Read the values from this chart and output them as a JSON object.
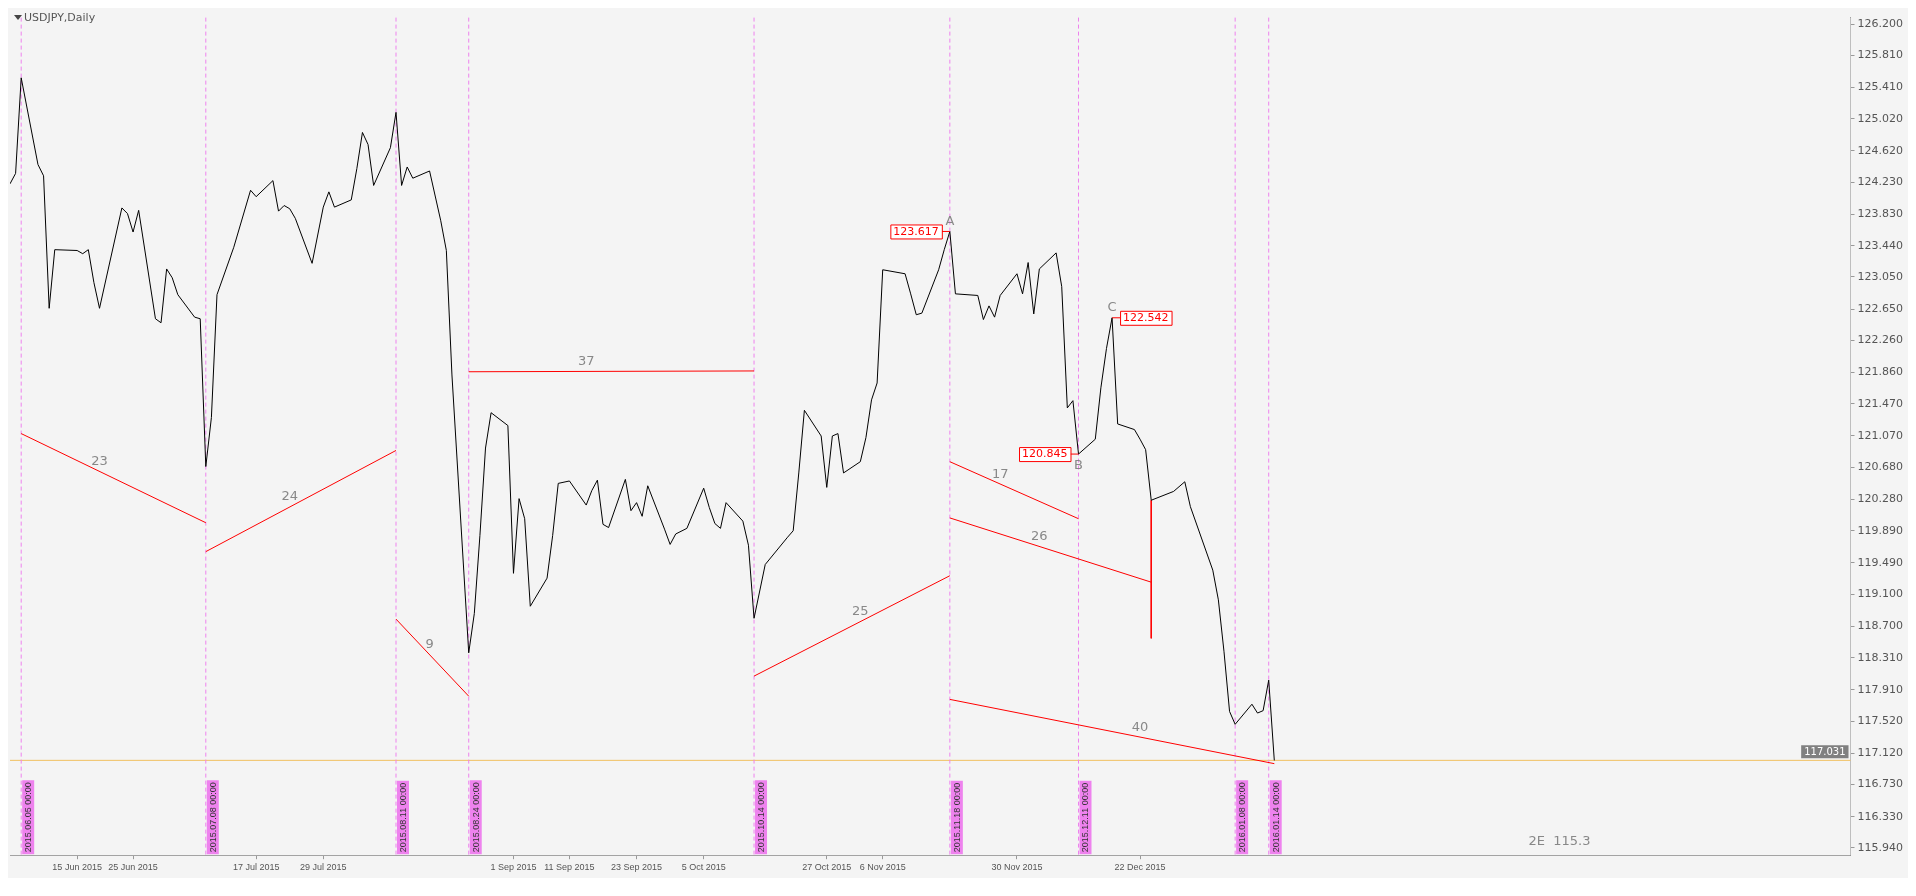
{
  "chart_data": {
    "type": "line",
    "title": "USDJPY,Daily",
    "marker": "none",
    "line_style": "solid",
    "x": [
      "2015-06-03",
      "2015-06-04",
      "2015-06-05",
      "2015-06-08",
      "2015-06-09",
      "2015-06-10",
      "2015-06-11",
      "2015-06-15",
      "2015-06-16",
      "2015-06-17",
      "2015-06-18",
      "2015-06-19",
      "2015-06-23",
      "2015-06-24",
      "2015-06-25",
      "2015-06-26",
      "2015-06-29",
      "2015-06-30",
      "2015-07-01",
      "2015-07-02",
      "2015-07-03",
      "2015-07-06",
      "2015-07-07",
      "2015-07-08",
      "2015-07-09",
      "2015-07-10",
      "2015-07-13",
      "2015-07-16",
      "2015-07-17",
      "2015-07-20",
      "2015-07-21",
      "2015-07-22",
      "2015-07-23",
      "2015-07-24",
      "2015-07-27",
      "2015-07-29",
      "2015-07-30",
      "2015-07-31",
      "2015-08-03",
      "2015-08-04",
      "2015-08-05",
      "2015-08-06",
      "2015-08-07",
      "2015-08-10",
      "2015-08-11",
      "2015-08-12",
      "2015-08-13",
      "2015-08-14",
      "2015-08-17",
      "2015-08-19",
      "2015-08-20",
      "2015-08-21",
      "2015-08-24",
      "2015-08-25",
      "2015-08-26",
      "2015-08-27",
      "2015-08-28",
      "2015-08-31",
      "2015-09-01",
      "2015-09-02",
      "2015-09-03",
      "2015-09-04",
      "2015-09-07",
      "2015-09-08",
      "2015-09-09",
      "2015-09-11",
      "2015-09-14",
      "2015-09-15",
      "2015-09-16",
      "2015-09-17",
      "2015-09-18",
      "2015-09-21",
      "2015-09-22",
      "2015-09-23",
      "2015-09-24",
      "2015-09-25",
      "2015-09-28",
      "2015-09-29",
      "2015-09-30",
      "2015-10-02",
      "2015-10-05",
      "2015-10-06",
      "2015-10-07",
      "2015-10-08",
      "2015-10-09",
      "2015-10-12",
      "2015-10-13",
      "2015-10-14",
      "2015-10-16",
      "2015-10-20",
      "2015-10-21",
      "2015-10-22",
      "2015-10-23",
      "2015-10-26",
      "2015-10-27",
      "2015-10-28",
      "2015-10-29",
      "2015-10-30",
      "2015-11-02",
      "2015-11-03",
      "2015-11-04",
      "2015-11-05",
      "2015-11-06",
      "2015-11-10",
      "2015-11-11",
      "2015-11-12",
      "2015-11-13",
      "2015-11-16",
      "2015-11-17",
      "2015-11-18",
      "2015-11-19",
      "2015-11-23",
      "2015-11-24",
      "2015-11-25",
      "2015-11-26",
      "2015-11-27",
      "2015-11-30",
      "2015-12-01",
      "2015-12-02",
      "2015-12-03",
      "2015-12-04",
      "2015-12-07",
      "2015-12-08",
      "2015-12-09",
      "2015-12-10",
      "2015-12-11",
      "2015-12-14",
      "2015-12-15",
      "2015-12-16",
      "2015-12-17",
      "2015-12-18",
      "2015-12-21",
      "2015-12-22",
      "2015-12-23",
      "2015-12-24",
      "2015-12-28",
      "2015-12-30",
      "2015-12-31",
      "2016-01-04",
      "2016-01-05",
      "2016-01-06",
      "2016-01-07",
      "2016-01-08",
      "2016-01-11",
      "2016-01-12",
      "2016-01-13",
      "2016-01-14",
      "2016-01-15"
    ],
    "series": [
      {
        "color": "#000000",
        "values": [
          124.21,
          124.34,
          125.53,
          124.45,
          124.31,
          122.66,
          123.39,
          123.38,
          123.34,
          123.39,
          122.98,
          122.66,
          123.91,
          123.84,
          123.61,
          123.88,
          122.53,
          122.48,
          123.15,
          123.04,
          122.83,
          122.55,
          122.53,
          120.69,
          121.3,
          122.83,
          123.42,
          124.13,
          124.05,
          124.25,
          123.87,
          123.94,
          123.9,
          123.78,
          123.22,
          123.92,
          124.11,
          123.92,
          124.01,
          124.4,
          124.85,
          124.7,
          124.19,
          124.66,
          125.1,
          124.19,
          124.42,
          124.28,
          124.37,
          123.75,
          123.38,
          121.83,
          118.37,
          118.86,
          119.83,
          120.92,
          121.36,
          121.2,
          119.36,
          120.29,
          120.04,
          118.95,
          119.3,
          119.83,
          120.48,
          120.51,
          120.21,
          120.39,
          120.52,
          119.97,
          119.93,
          120.53,
          120.14,
          120.24,
          120.07,
          120.45,
          119.91,
          119.72,
          119.85,
          119.92,
          120.42,
          120.18,
          119.98,
          119.92,
          120.24,
          120.01,
          119.71,
          118.8,
          119.47,
          119.81,
          119.89,
          120.61,
          121.39,
          121.07,
          120.43,
          121.07,
          121.1,
          120.61,
          120.75,
          121.05,
          121.52,
          121.73,
          123.14,
          123.09,
          122.84,
          122.58,
          122.6,
          123.14,
          123.39,
          123.617,
          122.84,
          122.82,
          122.52,
          122.69,
          122.55,
          122.82,
          123.09,
          122.84,
          123.23,
          122.59,
          123.15,
          123.35,
          122.93,
          121.42,
          121.51,
          120.845,
          121.03,
          121.67,
          122.16,
          122.542,
          121.22,
          121.15,
          121.03,
          120.9,
          120.27,
          120.38,
          120.5,
          120.19,
          119.4,
          119.03,
          118.39,
          117.64,
          117.48,
          117.73,
          117.62,
          117.65,
          118.03,
          117.03
        ],
        "value_labels": [
          null,
          null,
          null,
          null,
          null,
          null,
          null,
          null,
          null,
          null,
          null,
          null,
          null,
          null,
          null,
          null,
          null,
          null,
          null,
          null,
          null,
          null,
          null,
          null,
          null,
          null,
          null,
          null,
          null,
          null,
          null,
          null,
          null,
          null,
          null,
          null,
          null,
          null,
          null,
          null,
          null,
          null,
          null,
          null,
          null,
          null,
          null,
          null,
          null,
          null,
          null,
          null,
          null,
          null,
          null,
          null,
          null,
          null,
          null,
          null,
          null,
          null,
          null,
          null,
          null,
          null,
          null,
          null,
          null,
          null,
          null,
          null,
          null,
          null,
          null,
          null,
          null,
          null,
          null,
          null,
          null,
          null,
          null,
          null,
          null,
          null,
          null,
          null,
          null,
          null,
          null,
          null,
          null,
          null,
          null,
          null,
          null,
          null,
          null,
          null,
          null,
          null,
          null,
          null,
          null,
          null,
          null,
          null,
          null,
          "123.617",
          null,
          null,
          null,
          null,
          null,
          null,
          null,
          null,
          null,
          null,
          null,
          null,
          null,
          null,
          null,
          "120.845",
          null,
          null,
          null,
          "122.542",
          null,
          null,
          null,
          null,
          null,
          null,
          null,
          null,
          null,
          null,
          null,
          null,
          null,
          null,
          null,
          null,
          null,
          null
        ]
      },
      {
        "type": "line",
        "color": "#ff0000",
        "x": [
          "2015-06-05",
          "2015-07-08"
        ],
        "values": [
          121.1,
          119.99
        ]
      },
      {
        "type": "line",
        "color": "#ff0000",
        "x": [
          "2015-07-08",
          "2015-08-11"
        ],
        "values": [
          119.63,
          120.89
        ]
      },
      {
        "type": "line",
        "color": "#ff0000",
        "x": [
          "2015-08-11",
          "2015-08-24"
        ],
        "values": [
          118.79,
          117.83
        ]
      },
      {
        "type": "line",
        "color": "#ff0000",
        "x": [
          "2015-08-24",
          "2015-10-14"
        ],
        "values": [
          121.87,
          121.88
        ]
      },
      {
        "type": "line",
        "color": "#ff0000",
        "x": [
          "2015-10-14",
          "2015-11-18"
        ],
        "values": [
          118.08,
          119.33
        ]
      },
      {
        "type": "line",
        "color": "#ff0000",
        "x": [
          "2015-11-18",
          "2015-12-11"
        ],
        "values": [
          120.75,
          120.04
        ]
      },
      {
        "type": "line",
        "color": "#ff0000",
        "x": [
          "2015-11-18",
          "2015-12-24"
        ],
        "values": [
          120.05,
          119.25
        ]
      },
      {
        "type": "line",
        "color": "#ff0000",
        "x": [
          "2015-12-24",
          "2015-12-24"
        ],
        "values": [
          120.27,
          118.55
        ]
      },
      {
        "type": "line",
        "color": "#ff0000",
        "x": [
          "2015-11-18",
          "2016-01-15"
        ],
        "values": [
          117.79,
          116.99
        ]
      }
    ],
    "xlim": [
      "2015-06-03",
      "2016-04-27"
    ],
    "xticks": [
      {
        "value": "2015-06-15",
        "label": "15 Jun 2015"
      },
      {
        "value": "2015-06-25",
        "label": "25 Jun 2015"
      },
      {
        "value": "2015-07-17",
        "label": "17 Jul 2015"
      },
      {
        "value": "2015-07-29",
        "label": "29 Jul 2015"
      },
      {
        "value": "2015-09-01",
        "label": "1 Sep 2015"
      },
      {
        "value": "2015-09-11",
        "label": "11 Sep 2015"
      },
      {
        "value": "2015-09-23",
        "label": "23 Sep 2015"
      },
      {
        "value": "2015-10-05",
        "label": "5 Oct 2015"
      },
      {
        "value": "2015-10-27",
        "label": "27 Oct 2015"
      },
      {
        "value": "2015-11-06",
        "label": "6 Nov 2015"
      },
      {
        "value": "2015-11-30",
        "label": "30 Nov 2015"
      },
      {
        "value": "2015-12-22",
        "label": "22 Dec 2015"
      }
    ],
    "ylim": [
      115.85,
      126.28
    ],
    "yticks": [
      {
        "value": 126.2,
        "label": "126.200"
      },
      {
        "value": 125.81,
        "label": "125.810"
      },
      {
        "value": 125.41,
        "label": "125.410"
      },
      {
        "value": 125.02,
        "label": "125.020"
      },
      {
        "value": 124.62,
        "label": "124.620"
      },
      {
        "value": 124.23,
        "label": "124.230"
      },
      {
        "value": 123.83,
        "label": "123.830"
      },
      {
        "value": 123.44,
        "label": "123.440"
      },
      {
        "value": 123.05,
        "label": "123.050"
      },
      {
        "value": 122.65,
        "label": "122.650"
      },
      {
        "value": 122.26,
        "label": "122.260"
      },
      {
        "value": 121.86,
        "label": "121.860"
      },
      {
        "value": 121.47,
        "label": "121.470"
      },
      {
        "value": 121.07,
        "label": "121.070"
      },
      {
        "value": 120.68,
        "label": "120.680"
      },
      {
        "value": 120.28,
        "label": "120.280"
      },
      {
        "value": 119.89,
        "label": "119.890"
      },
      {
        "value": 119.49,
        "label": "119.490"
      },
      {
        "value": 119.1,
        "label": "119.100"
      },
      {
        "value": 118.7,
        "label": "118.700"
      },
      {
        "value": 118.31,
        "label": "118.310"
      },
      {
        "value": 117.91,
        "label": "117.910"
      },
      {
        "value": 117.52,
        "label": "117.520"
      },
      {
        "value": 117.12,
        "label": "117.120"
      },
      {
        "value": 116.73,
        "label": "116.730"
      },
      {
        "value": 116.33,
        "label": "116.330"
      },
      {
        "value": 115.94,
        "label": "115.940"
      }
    ],
    "ref_lines": [
      {
        "axis": "y",
        "value": 117.031,
        "label": "117.031",
        "color": "#f0c060",
        "line_style": "solid"
      },
      {
        "axis": "x",
        "value": "2015-06-05",
        "label": "2015.06.05 00:00",
        "color": "#ee82ee",
        "line_style": "dashed"
      },
      {
        "axis": "x",
        "value": "2015-07-08",
        "label": "2015.07.08 00:00",
        "color": "#ee82ee",
        "line_style": "dashed"
      },
      {
        "axis": "x",
        "value": "2015-08-11",
        "label": "2015.08.11 00:00",
        "color": "#ee82ee",
        "line_style": "dashed"
      },
      {
        "axis": "x",
        "value": "2015-08-24",
        "label": "2015.08.24 00:00",
        "color": "#ee82ee",
        "line_style": "dashed"
      },
      {
        "axis": "x",
        "value": "2015-10-14",
        "label": "2015.10.14 00:00",
        "color": "#ee82ee",
        "line_style": "dashed"
      },
      {
        "axis": "x",
        "value": "2015-11-18",
        "label": "2015.11.18 00:00",
        "color": "#ee82ee",
        "line_style": "dashed"
      },
      {
        "axis": "x",
        "value": "2015-12-11",
        "label": "2015.12.11 00:00",
        "color": "#ee82ee",
        "line_style": "dashed"
      },
      {
        "axis": "x",
        "value": "2016-01-08",
        "label": "2016.01.08 00:00",
        "color": "#ee82ee",
        "line_style": "dashed"
      },
      {
        "axis": "x",
        "value": "2016-01-14",
        "label": "2016.01.14 00:00",
        "color": "#ee82ee",
        "line_style": "dashed"
      }
    ],
    "annotations": [
      {
        "text": "23",
        "x": "2015-06-19",
        "y": 120.63
      },
      {
        "text": "24",
        "x": "2015-07-23",
        "y": 120.19
      },
      {
        "text": "9",
        "x": "2015-08-17",
        "y": 118.35
      },
      {
        "text": "37",
        "x": "2015-09-14",
        "y": 121.87
      },
      {
        "text": "25",
        "x": "2015-11-02",
        "y": 118.76
      },
      {
        "text": "17",
        "x": "2015-11-27",
        "y": 120.47
      },
      {
        "text": "26",
        "x": "2015-12-04",
        "y": 119.69
      },
      {
        "text": "40",
        "x": "2015-12-22",
        "y": 117.32
      },
      {
        "text": "A",
        "x": "2015-11-18",
        "y": 123.617
      },
      {
        "text": "B",
        "x": "2015-12-11",
        "y": 120.845
      },
      {
        "text": "C",
        "x": "2015-12-17",
        "y": 122.542
      },
      "2E  115.3"
    ]
  }
}
